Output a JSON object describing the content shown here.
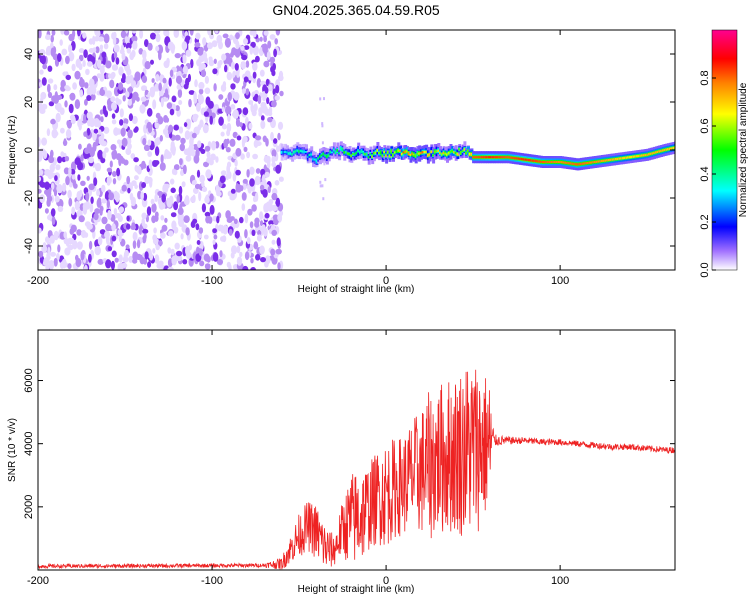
{
  "title": "GN04.2025.365.04.59.R05",
  "chart_data": [
    {
      "type": "heatmap",
      "xlabel": "Height of straight line (km)",
      "ylabel": "Frequency (Hz)",
      "xlim": [
        -200,
        166
      ],
      "ylim": [
        -50,
        50
      ],
      "xticks": [
        -200,
        -100,
        0,
        100
      ],
      "yticks": [
        -40,
        -20,
        0,
        20,
        40
      ],
      "noise_region": {
        "x": [
          -200,
          -60
        ],
        "y": [
          -50,
          50
        ],
        "amplitude": "random 0.0-0.3"
      },
      "ridge": {
        "x": [
          -60,
          -55,
          -50,
          -45,
          -40,
          -35,
          -30,
          -25,
          -20,
          -15,
          -10,
          -5,
          0,
          5,
          10,
          20,
          30,
          40,
          45,
          50,
          60,
          70,
          80,
          90,
          100,
          110,
          120,
          130,
          140,
          150,
          160,
          166
        ],
        "freq": [
          -1,
          -1,
          0,
          -2,
          -4,
          -2,
          -1,
          0,
          -2,
          -1,
          -3,
          -1,
          -2,
          -1,
          -1,
          -2,
          -1,
          -1,
          0,
          -3,
          -3,
          -3,
          -4,
          -5,
          -5,
          -6,
          -5,
          -4,
          -3,
          -2,
          0,
          1
        ],
        "peak_amplitude": [
          0.35,
          0.4,
          0.45,
          0.4,
          0.45,
          0.5,
          0.45,
          0.55,
          0.6,
          0.55,
          0.6,
          0.65,
          0.75,
          0.7,
          0.85,
          0.8,
          0.75,
          0.7,
          0.65,
          0.95,
          1.0,
          0.95,
          1.0,
          0.95,
          0.9,
          0.95,
          0.9,
          0.85,
          0.8,
          0.85,
          0.85,
          0.8
        ]
      },
      "colorbar": {
        "label": "Normalized spectral amplitude",
        "range": [
          0,
          1
        ],
        "ticks": [
          "0.0",
          "0.2",
          "0.4",
          "0.6",
          "0.8"
        ],
        "colors": [
          "#ffffff",
          "#8a2be2",
          "#0000ff",
          "#00ffff",
          "#00ff00",
          "#ffff00",
          "#ff8000",
          "#ff0000",
          "#ff0090"
        ]
      }
    },
    {
      "type": "line",
      "xlabel": "Height of straight line (km)",
      "ylabel": "SNR (10 * v/v)",
      "xlim": [
        -200,
        166
      ],
      "ylim": [
        0,
        7600
      ],
      "xticks": [
        -200,
        -100,
        0,
        100
      ],
      "yticks": [
        2000,
        4000,
        6000
      ],
      "series": [
        {
          "name": "SNR",
          "color": "#ee2222",
          "x": [
            -200,
            -150,
            -100,
            -70,
            -60,
            -50,
            -45,
            -40,
            -35,
            -30,
            -25,
            -20,
            -15,
            -10,
            -5,
            0,
            5,
            10,
            15,
            20,
            25,
            30,
            35,
            40,
            45,
            50,
            55,
            60,
            62,
            70,
            80,
            90,
            100,
            110,
            120,
            130,
            140,
            150,
            160,
            166
          ],
          "baseline": [
            120,
            130,
            140,
            150,
            200,
            1100,
            1400,
            1200,
            700,
            600,
            1300,
            1600,
            1700,
            2000,
            2300,
            2400,
            2600,
            2700,
            3000,
            3100,
            3300,
            3500,
            3600,
            3700,
            3800,
            3900,
            3950,
            4000,
            4100,
            4100,
            4100,
            4050,
            4050,
            4000,
            3950,
            3900,
            3900,
            3850,
            3800,
            3800
          ],
          "amplitude": [
            60,
            60,
            60,
            60,
            200,
            700,
            800,
            900,
            800,
            500,
            900,
            1500,
            1600,
            1400,
            1500,
            1700,
            1600,
            1600,
            1800,
            2000,
            2400,
            2400,
            2500,
            2600,
            2800,
            2900,
            2600,
            2000,
            200,
            120,
            110,
            100,
            100,
            100,
            100,
            100,
            100,
            100,
            100,
            100
          ]
        }
      ]
    }
  ]
}
